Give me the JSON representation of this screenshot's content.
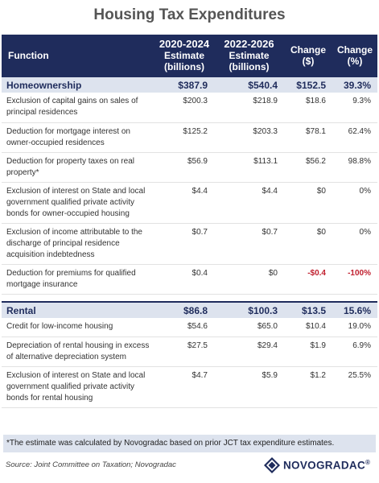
{
  "title": "Housing Tax Expenditures",
  "headers": {
    "function": "Function",
    "col1_line1": "2020-2024",
    "col1_line2": "Estimate",
    "col1_line3": "(billions)",
    "col2_line1": "2022-2026",
    "col2_line2": "Estimate",
    "col2_line3": "(billions)",
    "change_line1": "Change",
    "change_line2": "($)",
    "pct_line1": "Change",
    "pct_line2": "(%)"
  },
  "chart_data": {
    "type": "table",
    "columns": [
      "Function",
      "2020-2024 Estimate (billions)",
      "2022-2026 Estimate (billions)",
      "Change ($)",
      "Change (%)"
    ],
    "groups": [
      {
        "name": "Homeownership",
        "total": {
          "est_2020_2024": "$387.9",
          "est_2022_2026": "$540.4",
          "change": "$152.5",
          "change_pct": "39.3%"
        },
        "rows": [
          {
            "function": "Exclusion of capital gains on sales of principal residences",
            "est_2020_2024": "$200.3",
            "est_2022_2026": "$218.9",
            "change": "$18.6",
            "change_pct": "9.3%"
          },
          {
            "function": "Deduction for mortgage interest on owner-occupied residences",
            "est_2020_2024": "$125.2",
            "est_2022_2026": "$203.3",
            "change": "$78.1",
            "change_pct": "62.4%"
          },
          {
            "function": "Deduction for property taxes on real property*",
            "est_2020_2024": "$56.9",
            "est_2022_2026": "$113.1",
            "change": "$56.2",
            "change_pct": "98.8%"
          },
          {
            "function": "Exclusion of interest on State and local government qualified private activity bonds for owner-occupied housing",
            "est_2020_2024": "$4.4",
            "est_2022_2026": "$4.4",
            "change": "$0",
            "change_pct": "0%"
          },
          {
            "function": "Exclusion of income attributable to the discharge of principal residence acquisition indebtedness",
            "est_2020_2024": "$0.7",
            "est_2022_2026": "$0.7",
            "change": "$0",
            "change_pct": "0%"
          },
          {
            "function": "Deduction for premiums for qualified mortgage insurance",
            "est_2020_2024": "$0.4",
            "est_2022_2026": "$0",
            "change": "-$0.4",
            "change_pct": "-100%"
          }
        ]
      },
      {
        "name": "Rental",
        "total": {
          "est_2020_2024": "$86.8",
          "est_2022_2026": "$100.3",
          "change": "$13.5",
          "change_pct": "15.6%"
        },
        "rows": [
          {
            "function": "Credit for low-income housing",
            "est_2020_2024": "$54.6",
            "est_2022_2026": "$65.0",
            "change": "$10.4",
            "change_pct": "19.0%"
          },
          {
            "function": "Depreciation of rental housing in excess of alternative depreciation system",
            "est_2020_2024": "$27.5",
            "est_2022_2026": "$29.4",
            "change": "$1.9",
            "change_pct": "6.9%"
          },
          {
            "function": "Exclusion of interest on State and local government qualified private activity bonds for rental housing",
            "est_2020_2024": "$4.7",
            "est_2022_2026": "$5.9",
            "change": "$1.2",
            "change_pct": "25.5%"
          }
        ]
      }
    ],
    "negative_color": "#c0202f"
  },
  "footnote": "*The estimate was calculated by Novogradac based on prior JCT tax expenditure estimates.",
  "source": "Source: Joint Committee on Taxation; Novogradac",
  "logo": {
    "text": "NOVOGRADAC",
    "mark": "®",
    "icon": "diamond-logo-icon"
  },
  "colors": {
    "header_bg": "#1f2c5c",
    "group_bg": "#dde3ee",
    "negative": "#c0202f"
  }
}
